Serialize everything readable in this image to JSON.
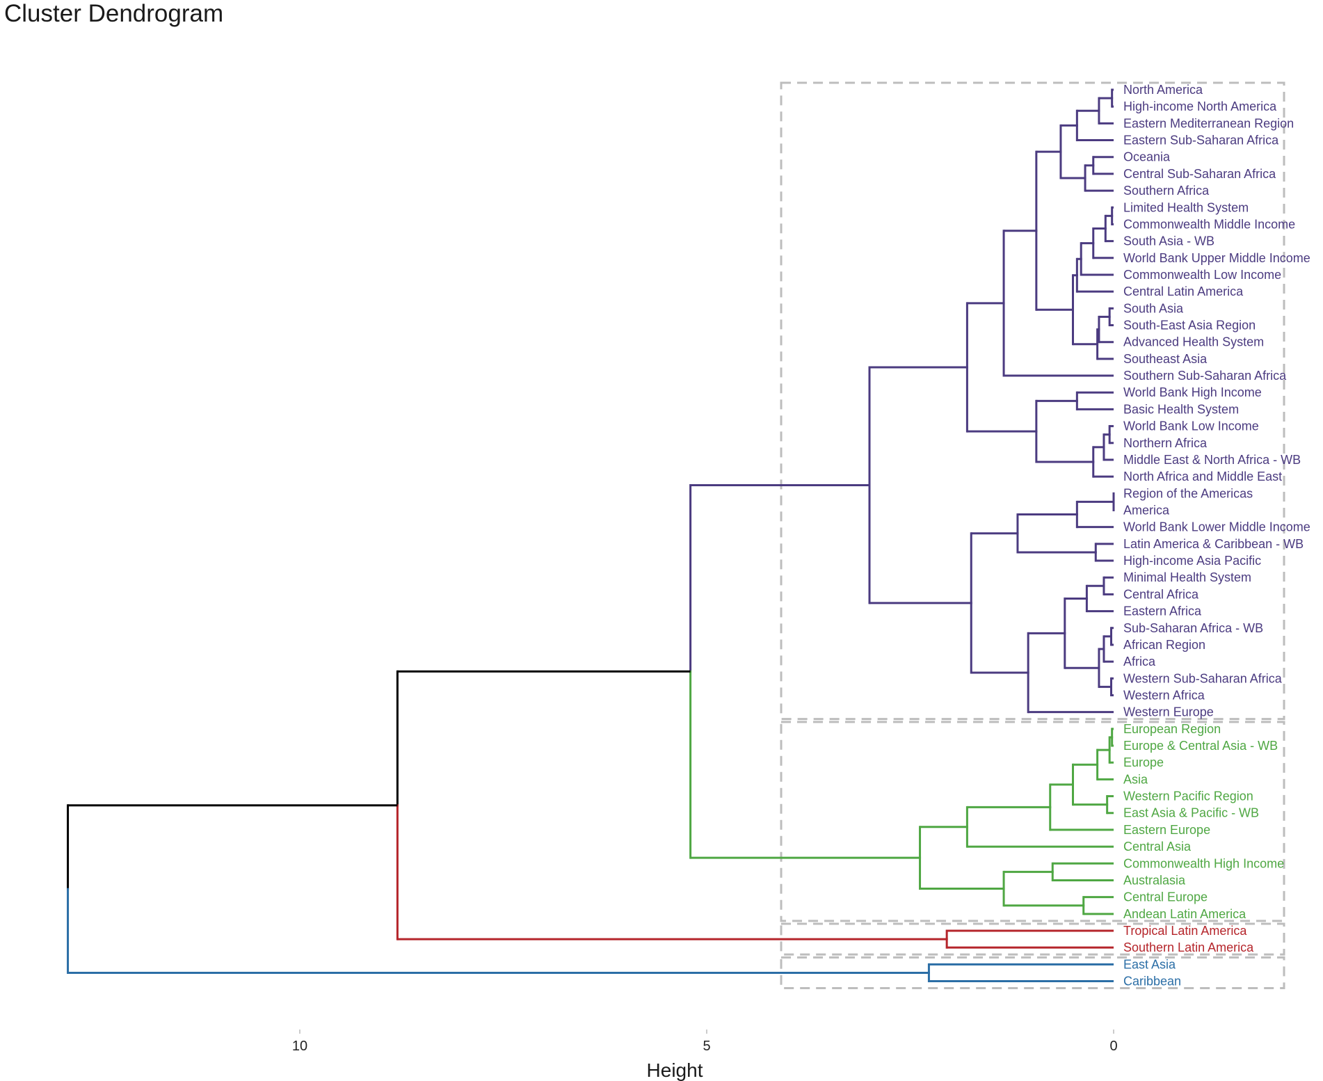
{
  "chart_data": {
    "type": "dendrogram",
    "title": "Cluster Dendrogram",
    "xlabel": "Height",
    "x_axis": {
      "reversed": true,
      "ticks": [
        10,
        5,
        0
      ],
      "range": [
        12.9,
        -2.2
      ]
    },
    "leaves": [
      {
        "label": "North America",
        "cluster": 1
      },
      {
        "label": "High-income North America",
        "cluster": 1
      },
      {
        "label": "Eastern Mediterranean Region",
        "cluster": 1
      },
      {
        "label": "Eastern Sub-Saharan Africa",
        "cluster": 1
      },
      {
        "label": "Oceania",
        "cluster": 1
      },
      {
        "label": "Central Sub-Saharan Africa",
        "cluster": 1
      },
      {
        "label": "Southern Africa",
        "cluster": 1
      },
      {
        "label": "Limited Health System",
        "cluster": 1
      },
      {
        "label": "Commonwealth Middle Income",
        "cluster": 1
      },
      {
        "label": "South Asia - WB",
        "cluster": 1
      },
      {
        "label": "World Bank Upper Middle Income",
        "cluster": 1
      },
      {
        "label": "Commonwealth Low Income",
        "cluster": 1
      },
      {
        "label": "Central Latin America",
        "cluster": 1
      },
      {
        "label": "South Asia",
        "cluster": 1
      },
      {
        "label": "South-East Asia Region",
        "cluster": 1
      },
      {
        "label": "Advanced Health System",
        "cluster": 1
      },
      {
        "label": "Southeast Asia",
        "cluster": 1
      },
      {
        "label": "Southern Sub-Saharan Africa",
        "cluster": 1
      },
      {
        "label": "World Bank High Income",
        "cluster": 1
      },
      {
        "label": "Basic Health System",
        "cluster": 1
      },
      {
        "label": "World Bank Low Income",
        "cluster": 1
      },
      {
        "label": "Northern Africa",
        "cluster": 1
      },
      {
        "label": "Middle East & North Africa - WB",
        "cluster": 1
      },
      {
        "label": "North Africa and Middle East",
        "cluster": 1
      },
      {
        "label": "Region of the Americas",
        "cluster": 1
      },
      {
        "label": "America",
        "cluster": 1
      },
      {
        "label": "World Bank Lower Middle Income",
        "cluster": 1
      },
      {
        "label": "Latin America & Caribbean - WB",
        "cluster": 1
      },
      {
        "label": "High-income Asia Pacific",
        "cluster": 1
      },
      {
        "label": "Minimal Health System",
        "cluster": 1
      },
      {
        "label": "Central Africa",
        "cluster": 1
      },
      {
        "label": "Eastern Africa",
        "cluster": 1
      },
      {
        "label": "Sub-Saharan Africa - WB",
        "cluster": 1
      },
      {
        "label": "African Region",
        "cluster": 1
      },
      {
        "label": "Africa",
        "cluster": 1
      },
      {
        "label": "Western Sub-Saharan Africa",
        "cluster": 1
      },
      {
        "label": "Western Africa",
        "cluster": 1
      },
      {
        "label": "Western Europe",
        "cluster": 1
      },
      {
        "label": "European Region",
        "cluster": 2
      },
      {
        "label": "Europe & Central Asia - WB",
        "cluster": 2
      },
      {
        "label": "Europe",
        "cluster": 2
      },
      {
        "label": "Asia",
        "cluster": 2
      },
      {
        "label": "Western Pacific Region",
        "cluster": 2
      },
      {
        "label": "East Asia & Pacific - WB",
        "cluster": 2
      },
      {
        "label": "Eastern Europe",
        "cluster": 2
      },
      {
        "label": "Central Asia",
        "cluster": 2
      },
      {
        "label": "Commonwealth High Income",
        "cluster": 2
      },
      {
        "label": "Australasia",
        "cluster": 2
      },
      {
        "label": "Central Europe",
        "cluster": 2
      },
      {
        "label": "Andean Latin America",
        "cluster": 2
      },
      {
        "label": "Tropical Latin America",
        "cluster": 3
      },
      {
        "label": "Southern Latin America",
        "cluster": 3
      },
      {
        "label": "East Asia",
        "cluster": 4
      },
      {
        "label": "Caribbean",
        "cluster": 4
      }
    ],
    "merges": [
      {
        "a": 0,
        "b": 1,
        "h": 0.02
      },
      {
        "a": "m0",
        "b": 2,
        "h": 0.18
      },
      {
        "a": "m1",
        "b": 3,
        "h": 0.45
      },
      {
        "a": 4,
        "b": 5,
        "h": 0.25
      },
      {
        "a": "m3",
        "b": 6,
        "h": 0.35
      },
      {
        "a": "m2",
        "b": "m4",
        "h": 0.65
      },
      {
        "a": 7,
        "b": 8,
        "h": 0.02
      },
      {
        "a": "m6",
        "b": 9,
        "h": 0.1
      },
      {
        "a": "m7",
        "b": 10,
        "h": 0.25
      },
      {
        "a": "m8",
        "b": 11,
        "h": 0.4
      },
      {
        "a": "m9",
        "b": 12,
        "h": 0.45
      },
      {
        "a": 13,
        "b": 14,
        "h": 0.05
      },
      {
        "a": "m11",
        "b": 15,
        "h": 0.18
      },
      {
        "a": "m12",
        "b": 16,
        "h": 0.2
      },
      {
        "a": "m10",
        "b": "m13",
        "h": 0.5
      },
      {
        "a": "m5",
        "b": "m14",
        "h": 0.95
      },
      {
        "a": "m15",
        "b": 17,
        "h": 1.35
      },
      {
        "a": 18,
        "b": 19,
        "h": 0.45
      },
      {
        "a": 20,
        "b": 21,
        "h": 0.05
      },
      {
        "a": "m18",
        "b": 22,
        "h": 0.12
      },
      {
        "a": "m19",
        "b": 23,
        "h": 0.25
      },
      {
        "a": "m17",
        "b": "m20",
        "h": 0.95
      },
      {
        "a": "m16",
        "b": "m21",
        "h": 1.8
      },
      {
        "a": 24,
        "b": 25,
        "h": 0.0
      },
      {
        "a": "m23",
        "b": 26,
        "h": 0.45
      },
      {
        "a": 27,
        "b": 28,
        "h": 0.22
      },
      {
        "a": "m24",
        "b": "m25",
        "h": 1.18
      },
      {
        "a": 29,
        "b": 30,
        "h": 0.12
      },
      {
        "a": "m27",
        "b": 31,
        "h": 0.33
      },
      {
        "a": 32,
        "b": 33,
        "h": 0.03
      },
      {
        "a": "m29",
        "b": 34,
        "h": 0.12
      },
      {
        "a": 35,
        "b": 36,
        "h": 0.03
      },
      {
        "a": "m30",
        "b": "m31",
        "h": 0.18
      },
      {
        "a": "m28",
        "b": "m32",
        "h": 0.6
      },
      {
        "a": "m33",
        "b": 37,
        "h": 1.05
      },
      {
        "a": "m26",
        "b": "m34",
        "h": 1.75
      },
      {
        "a": "m22",
        "b": "m35",
        "h": 3.0
      },
      {
        "a": 38,
        "b": 39,
        "h": 0.02
      },
      {
        "a": "m37",
        "b": 40,
        "h": 0.05
      },
      {
        "a": "m38",
        "b": 41,
        "h": 0.2
      },
      {
        "a": 42,
        "b": 43,
        "h": 0.08
      },
      {
        "a": "m39",
        "b": "m40",
        "h": 0.5
      },
      {
        "a": "m41",
        "b": 44,
        "h": 0.78
      },
      {
        "a": "m42",
        "b": 45,
        "h": 1.8
      },
      {
        "a": 46,
        "b": 47,
        "h": 0.75
      },
      {
        "a": 48,
        "b": 49,
        "h": 0.37
      },
      {
        "a": "m44",
        "b": "m45",
        "h": 1.35
      },
      {
        "a": "m43",
        "b": "m46",
        "h": 2.38
      },
      {
        "a": "m36",
        "b": "m47",
        "h": 5.2
      },
      {
        "a": 50,
        "b": 51,
        "h": 2.05
      },
      {
        "a": "m48",
        "b": "m49",
        "h": 8.8
      },
      {
        "a": 52,
        "b": 53,
        "h": 2.27
      },
      {
        "a": "m50",
        "b": "m51",
        "h": 12.85
      }
    ],
    "clusters": [
      {
        "id": 1,
        "color": "#4b3b80",
        "first_leaf": 0,
        "last_leaf": 37
      },
      {
        "id": 2,
        "color": "#4fa743",
        "first_leaf": 38,
        "last_leaf": 49
      },
      {
        "id": 3,
        "color": "#b5252b",
        "first_leaf": 50,
        "last_leaf": 51
      },
      {
        "id": 4,
        "color": "#2b6ea6",
        "first_leaf": 52,
        "last_leaf": 53
      }
    ],
    "colors": {
      "upper_links": "#000000",
      "box_stroke": "#bdbdbd"
    }
  }
}
